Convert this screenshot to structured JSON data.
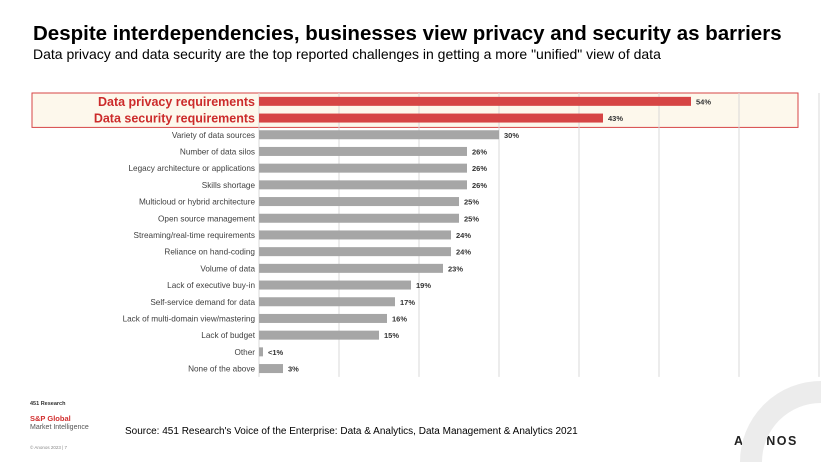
{
  "header": {
    "title": "Despite interdependencies, businesses view privacy and security as barriers",
    "subtitle": "Data privacy and data security are the top reported challenges in getting a more \"unified\" view of data"
  },
  "footer": {
    "logo_line1": "451 Research",
    "logo_line2": "S&P Global",
    "logo_line3": "Market Intelligence",
    "copyright": "© Anonos 2023  |  7",
    "source": "Source: 451 Research's Voice of the Enterprise: Data & Analytics, Data Management & Analytics 2021",
    "brand": "ANONOS"
  },
  "colors": {
    "highlight_bar": "#d64545",
    "highlight_text": "#cc2b2b",
    "highlight_box_fill": "#fdf8ec",
    "highlight_box_border": "#d64545",
    "normal_bar": "#a6a6a6",
    "grid": "#d9d9d9"
  },
  "chart_data": {
    "type": "bar",
    "orientation": "horizontal",
    "title": "",
    "xlabel": "",
    "ylabel": "",
    "xlim": [
      0,
      70
    ],
    "grid": true,
    "categories": [
      "Data privacy requirements",
      "Data security requirements",
      "Variety of data sources",
      "Number of data silos",
      "Legacy architecture or applications",
      "Skills shortage",
      "Multicloud or hybrid architecture",
      "Open source management",
      "Streaming/real-time requirements",
      "Reliance on hand-coding",
      "Volume of data",
      "Lack of executive buy-in",
      "Self-service demand for data",
      "Lack of multi-domain view/mastering",
      "Lack of budget",
      "Other",
      "None of the above"
    ],
    "values": [
      54,
      43,
      30,
      26,
      26,
      26,
      25,
      25,
      24,
      24,
      23,
      19,
      17,
      16,
      15,
      0.5,
      3
    ],
    "value_labels": [
      "54%",
      "43%",
      "30%",
      "26%",
      "26%",
      "26%",
      "25%",
      "25%",
      "24%",
      "24%",
      "23%",
      "19%",
      "17%",
      "16%",
      "15%",
      "<1%",
      "3%"
    ],
    "highlighted": [
      true,
      true,
      false,
      false,
      false,
      false,
      false,
      false,
      false,
      false,
      false,
      false,
      false,
      false,
      false,
      false,
      false
    ]
  }
}
